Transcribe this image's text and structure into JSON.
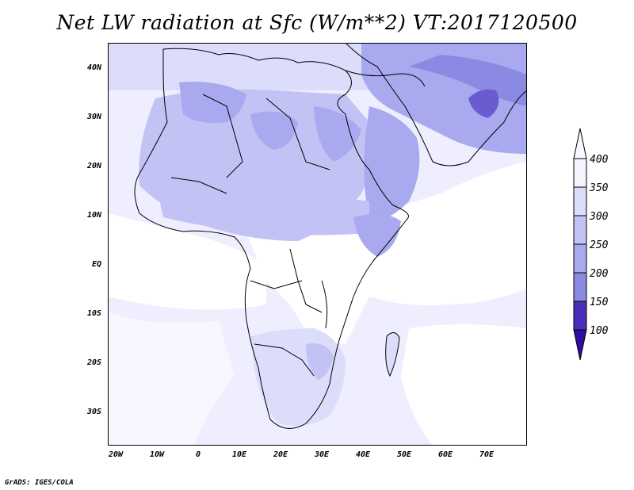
{
  "title": "Net LW radiation at Sfc (W/m**2) VT:2017120500",
  "credit": "GrADS: IGES/COLA",
  "latitude_labels": [
    "40N",
    "30N",
    "20N",
    "10N",
    "EQ",
    "10S",
    "20S",
    "30S"
  ],
  "longitude_labels": [
    "20W",
    "10W",
    "0",
    "10E",
    "20E",
    "30E",
    "40E",
    "50E",
    "60E",
    "70E"
  ],
  "colorbar": {
    "labels": [
      "400",
      "350",
      "300",
      "250",
      "200",
      "150",
      "100"
    ],
    "colors": [
      "#f4f4ff",
      "#dcdcfb",
      "#c2c2f5",
      "#a9a9ef",
      "#8a8ae3",
      "#6a5cd0",
      "#4a2fb8",
      "#2e0ea0"
    ]
  },
  "colors": {
    "ocean_low": "#ffffff",
    "ocean": "#eeeeff",
    "land_light": "#dcdcfb",
    "land_mid": "#c2c2f5",
    "land_dark": "#a9a9ef",
    "land_darker": "#8a8ae3",
    "border": "#000000"
  }
}
